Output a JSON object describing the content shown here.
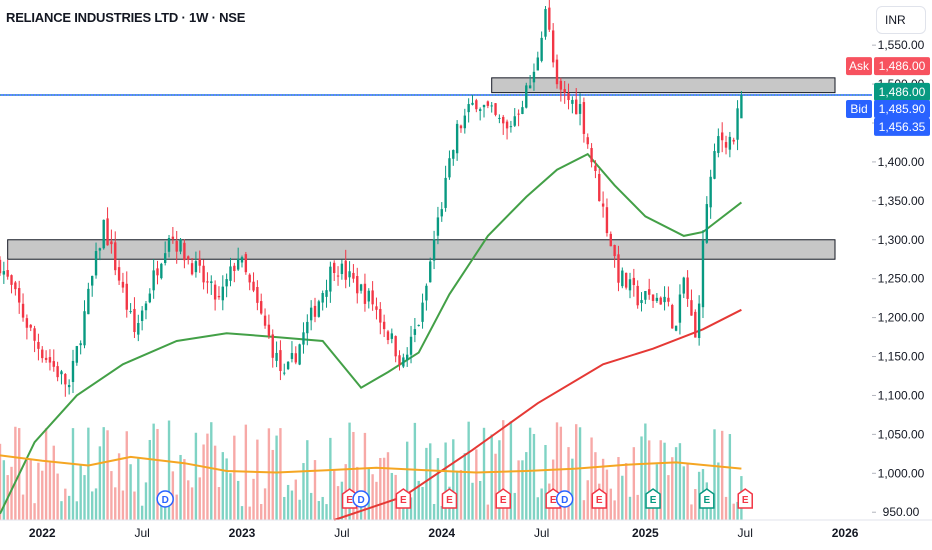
{
  "header": {
    "title": "RELIANCE INDUSTRIES LTD · 1W · NSE",
    "currency": "INR"
  },
  "chart_data": {
    "type": "candlestick",
    "y_axis": {
      "ticks": [
        1550,
        1500,
        1450,
        1400,
        1350,
        1300,
        1250,
        1200,
        1150,
        1100,
        1050,
        1000,
        950
      ],
      "tick_labels": [
        "1,550.00",
        "1,500.00",
        "1,450.00",
        "1,400.00",
        "1,350.00",
        "1,300.00",
        "1,250.00",
        "1,200.00",
        "1,150.00",
        "1,100.00",
        "1,050.00",
        "1,000.00",
        "950.00"
      ],
      "range": [
        940,
        1608
      ]
    },
    "x_axis": {
      "range": [
        "2021-10-18",
        "2026-02-23"
      ],
      "ticks": [
        {
          "label": "2022",
          "date": "2022-01-03",
          "bold": true
        },
        {
          "label": "Jul",
          "date": "2022-07-04",
          "bold": false
        },
        {
          "label": "2023",
          "date": "2023-01-02",
          "bold": true
        },
        {
          "label": "Jul",
          "date": "2023-07-03",
          "bold": false
        },
        {
          "label": "2024",
          "date": "2024-01-01",
          "bold": true
        },
        {
          "label": "Jul",
          "date": "2024-07-01",
          "bold": false
        },
        {
          "label": "2025",
          "date": "2025-01-06",
          "bold": true
        },
        {
          "label": "Jul",
          "date": "2025-07-07",
          "bold": false
        },
        {
          "label": "2026",
          "date": "2026-01-05",
          "bold": true
        }
      ]
    },
    "price_path": [
      [
        "2021-10-18",
        1270
      ],
      [
        "2021-12-20",
        1170
      ],
      [
        "2022-02-21",
        1110
      ],
      [
        "2022-04-25",
        1320
      ],
      [
        "2022-06-20",
        1180
      ],
      [
        "2022-08-22",
        1310
      ],
      [
        "2022-11-21",
        1220
      ],
      [
        "2022-12-26",
        1280
      ],
      [
        "2023-03-20",
        1120
      ],
      [
        "2023-06-19",
        1270
      ],
      [
        "2023-08-28",
        1220
      ],
      [
        "2023-10-23",
        1140
      ],
      [
        "2023-11-27",
        1210
      ],
      [
        "2023-12-18",
        1300
      ],
      [
        "2024-01-29",
        1440
      ],
      [
        "2024-03-04",
        1480
      ],
      [
        "2024-04-29",
        1440
      ],
      [
        "2024-06-17",
        1510
      ],
      [
        "2024-07-08",
        1600
      ],
      [
        "2024-07-29",
        1490
      ],
      [
        "2024-09-09",
        1470
      ],
      [
        "2024-10-07",
        1380
      ],
      [
        "2024-11-18",
        1255
      ],
      [
        "2024-12-23",
        1225
      ],
      [
        "2025-02-10",
        1225
      ],
      [
        "2025-03-03",
        1185
      ],
      [
        "2025-03-17",
        1250
      ],
      [
        "2025-04-07",
        1170
      ],
      [
        "2025-04-28",
        1350
      ],
      [
        "2025-05-19",
        1430
      ],
      [
        "2025-06-16",
        1430
      ],
      [
        "2025-06-30",
        1486
      ]
    ],
    "series": [
      {
        "name": "",
        "kind": "ma",
        "color": "#43a047",
        "points": [
          [
            "2021-10-18",
            948
          ],
          [
            "2021-12-20",
            1040
          ],
          [
            "2022-03-07",
            1100
          ],
          [
            "2022-05-30",
            1140
          ],
          [
            "2022-09-05",
            1170
          ],
          [
            "2022-12-05",
            1180
          ],
          [
            "2023-03-06",
            1175
          ],
          [
            "2023-05-29",
            1170
          ],
          [
            "2023-08-07",
            1110
          ],
          [
            "2023-09-25",
            1130
          ],
          [
            "2023-11-20",
            1155
          ],
          [
            "2024-01-15",
            1230
          ],
          [
            "2024-03-25",
            1305
          ],
          [
            "2024-06-03",
            1355
          ],
          [
            "2024-07-29",
            1390
          ],
          [
            "2024-09-23",
            1410
          ],
          [
            "2024-11-11",
            1370
          ],
          [
            "2025-01-06",
            1330
          ],
          [
            "2025-03-17",
            1305
          ],
          [
            "2025-04-21",
            1310
          ],
          [
            "2025-06-30",
            1348
          ]
        ]
      },
      {
        "name": "",
        "kind": "ma",
        "color": "#e53935",
        "points": [
          [
            "2023-06-19",
            940
          ],
          [
            "2023-10-23",
            970
          ],
          [
            "2024-02-26",
            1030
          ],
          [
            "2024-06-24",
            1090
          ],
          [
            "2024-10-21",
            1140
          ],
          [
            "2025-01-20",
            1160
          ],
          [
            "2025-04-21",
            1185
          ],
          [
            "2025-06-30",
            1210
          ]
        ]
      },
      {
        "name": "",
        "kind": "volume-ma",
        "color": "#f5a623",
        "points": [
          [
            "2021-10-18",
            1023
          ],
          [
            "2022-01-03",
            1016
          ],
          [
            "2022-03-28",
            1010
          ],
          [
            "2022-06-13",
            1021
          ],
          [
            "2022-09-19",
            1013
          ],
          [
            "2022-12-05",
            1003
          ],
          [
            "2023-03-06",
            1001
          ],
          [
            "2023-06-05",
            1004
          ],
          [
            "2023-09-04",
            1007
          ],
          [
            "2023-12-04",
            1004
          ],
          [
            "2024-03-04",
            1001
          ],
          [
            "2024-06-03",
            1003
          ],
          [
            "2024-09-02",
            1006
          ],
          [
            "2024-12-02",
            1011
          ],
          [
            "2025-03-03",
            1014
          ],
          [
            "2025-06-30",
            1006
          ]
        ]
      }
    ],
    "zones": [
      {
        "from": "2024-04-01",
        "to": "2026-02-23",
        "low": 1489,
        "high": 1508,
        "color": "#c7c7c7"
      },
      {
        "from": "2021-11-01",
        "to": "2026-02-23",
        "low": 1275,
        "high": 1300,
        "color": "#c7c7c7"
      }
    ],
    "lines": [
      {
        "value": 1485.9,
        "style": "solid",
        "color": "#2962ff"
      },
      {
        "value": 1486.0,
        "style": "dotted",
        "color": "#089981"
      }
    ],
    "price_tags": [
      {
        "label": "Ask",
        "value": "1,486.00",
        "color": "#f7525f",
        "y_value": 1523
      },
      {
        "label": "",
        "value": "1,486.00",
        "color": "#089981",
        "y_value": 1490
      },
      {
        "label": "Bid",
        "value": "1,485.90",
        "color": "#2962ff",
        "y_value": 1468
      },
      {
        "label": "",
        "value": "1,456.35",
        "color": "#2962ff",
        "y_value": 1445
      }
    ],
    "events": [
      {
        "letter": "D",
        "date": "2022-08-15",
        "color": "#2962ff"
      },
      {
        "letter": "E",
        "date": "2023-07-17",
        "color": "#f23645"
      },
      {
        "letter": "D",
        "date": "2023-08-07",
        "color": "#2962ff"
      },
      {
        "letter": "E",
        "date": "2023-10-23",
        "color": "#f23645"
      },
      {
        "letter": "E",
        "date": "2024-01-15",
        "color": "#f23645"
      },
      {
        "letter": "E",
        "date": "2024-04-22",
        "color": "#f23645"
      },
      {
        "letter": "E",
        "date": "2024-07-22",
        "color": "#f23645"
      },
      {
        "letter": "D",
        "date": "2024-08-12",
        "color": "#2962ff"
      },
      {
        "letter": "E",
        "date": "2024-10-14",
        "color": "#f23645"
      },
      {
        "letter": "E",
        "date": "2025-01-20",
        "color": "#089981"
      },
      {
        "letter": "E",
        "date": "2025-04-28",
        "color": "#089981"
      },
      {
        "letter": "E",
        "date": "2025-07-07",
        "color": "#f23645"
      }
    ],
    "grid": false,
    "colors": {
      "up": "#089981",
      "down": "#f23645",
      "up_volume": "#7fd3c4",
      "down_volume": "#f7a9a7"
    }
  }
}
